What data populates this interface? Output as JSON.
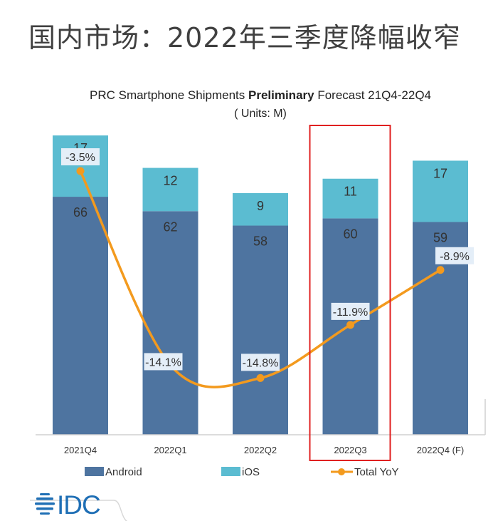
{
  "page_title": "国内市场：2022年三季度降幅收窄",
  "logo_text": "IDC",
  "chart_data": {
    "type": "bar",
    "title_pre": "PRC Smartphone Shipments ",
    "title_bold": "Preliminary",
    "title_post": " Forecast 21Q4-22Q4",
    "subtitle": "( Units: M)",
    "stacked": true,
    "categories": [
      "2021Q4",
      "2022Q1",
      "2022Q2",
      "2022Q3",
      "2022Q4 (F)"
    ],
    "series": [
      {
        "name": "Android",
        "values": [
          66,
          62,
          58,
          60,
          59
        ],
        "color": "#4e74a0"
      },
      {
        "name": "iOS",
        "values": [
          17,
          12,
          9,
          11,
          17
        ],
        "color": "#5bbcd1"
      }
    ],
    "line_series": {
      "name": "Total YoY",
      "values": [
        -3.5,
        -14.1,
        -14.8,
        -11.9,
        -8.9
      ],
      "labels": [
        "-3.5%",
        "-14.1%",
        "-14.8%",
        "-11.9%",
        "-8.9%"
      ],
      "color": "#f39a1e"
    },
    "highlighted_category": "2022Q3",
    "highlight_color": "#e02020",
    "legend_position": "bottom",
    "grid": false
  }
}
